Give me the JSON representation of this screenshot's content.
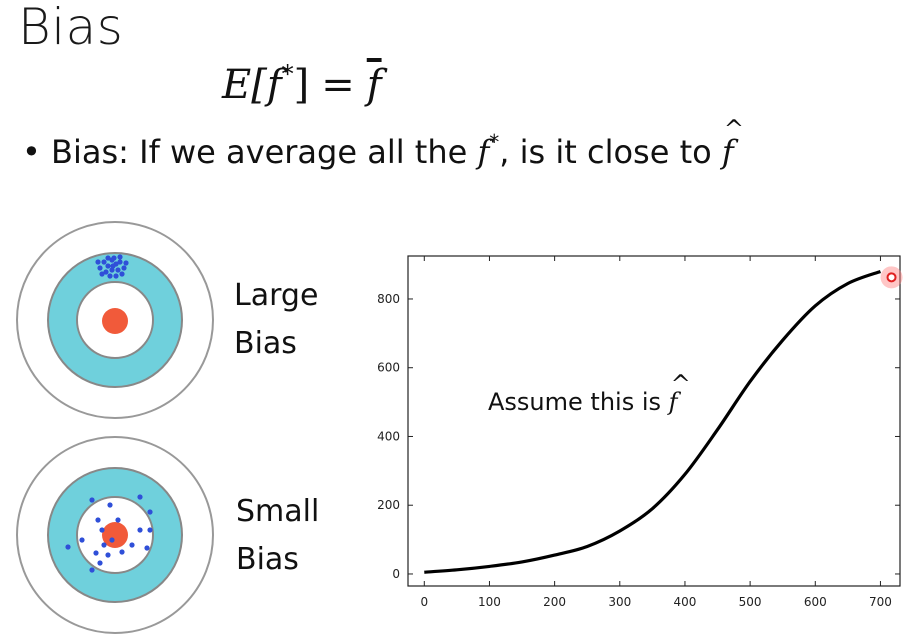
{
  "slide": {
    "title": "Bias",
    "formula": {
      "lhs_func": "f",
      "lhs_sup": "*",
      "lhs_open": "E[",
      "lhs_close": "]",
      "equals": "=",
      "rhs": "f"
    },
    "bullet": {
      "marker": "•",
      "text_before": "Bias: If we average all the ",
      "f_star": "f",
      "star": "*",
      "text_after": ", is it close to ",
      "f_hat": "f"
    },
    "targets": [
      {
        "label_line1": "Large",
        "label_line2": "Bias"
      },
      {
        "label_line1": "Small",
        "label_line2": "Bias"
      }
    ],
    "annotation": {
      "text": "Assume this is ",
      "f_hat": "f"
    }
  },
  "colors": {
    "ring_outer": "#ffffff",
    "ring_teal": "#6fd0dc",
    "bullseye": "#f15a3a",
    "dots": "#2f4fd8",
    "curve": "#000000",
    "highlight": "#ff4444"
  },
  "chart_data": {
    "type": "line",
    "title": "",
    "xlabel": "",
    "ylabel": "",
    "xlim": [
      -25,
      730
    ],
    "ylim": [
      -35,
      925
    ],
    "xticks": [
      0,
      100,
      200,
      300,
      400,
      500,
      600,
      700
    ],
    "yticks": [
      0,
      200,
      400,
      600,
      800
    ],
    "series": [
      {
        "x": [
          0,
          50,
          100,
          150,
          200,
          250,
          300,
          350,
          400,
          450,
          500,
          550,
          600,
          650,
          700
        ],
        "values": [
          5,
          12,
          22,
          35,
          55,
          80,
          125,
          190,
          290,
          420,
          560,
          680,
          780,
          845,
          880
        ]
      }
    ],
    "highlight_point": {
      "x": 717,
      "y": 863
    },
    "grid": false
  }
}
